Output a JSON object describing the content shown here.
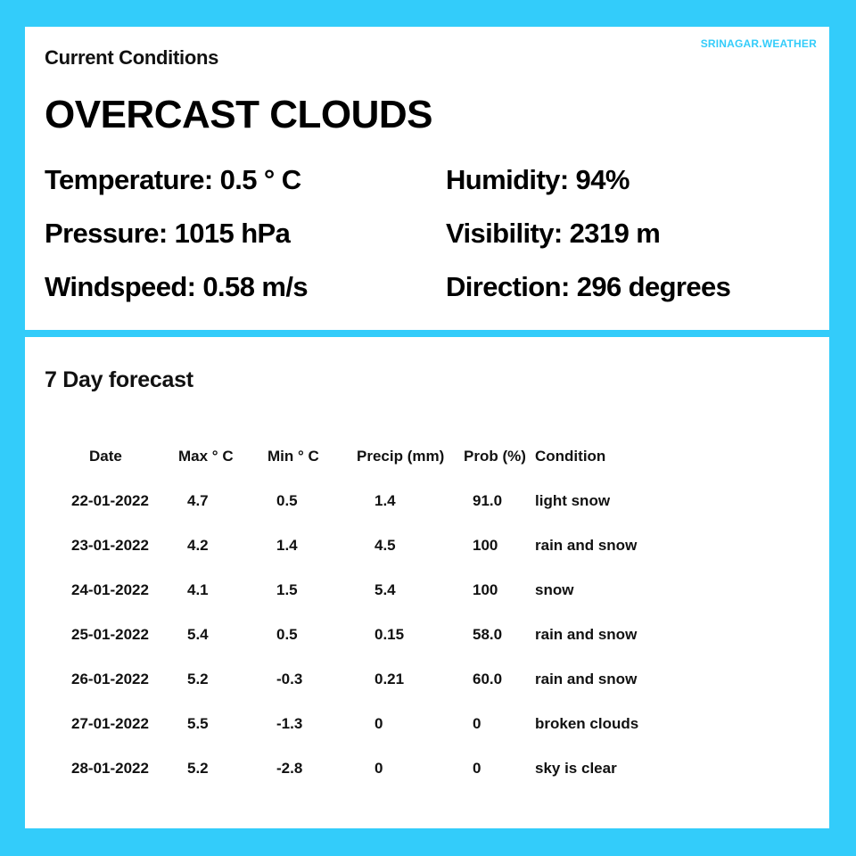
{
  "brand": "SRINAGAR.WEATHER",
  "current": {
    "section_title": "Current Conditions",
    "headline": "OVERCAST CLOUDS",
    "temperature": "Temperature: 0.5 ° C",
    "humidity": "Humidity: 94%",
    "pressure": "Pressure: 1015 hPa",
    "visibility": "Visibility: 2319 m",
    "windspeed": "Windspeed: 0.58 m/s",
    "direction": "Direction: 296 degrees"
  },
  "forecast": {
    "section_title": "7 Day forecast",
    "headers": {
      "date": "Date",
      "max": "Max ° C",
      "min": "Min ° C",
      "precip": "Precip (mm)",
      "prob": "Prob (%)",
      "condition": "Condition"
    },
    "rows": [
      {
        "date": "22-01-2022",
        "max": "4.7",
        "min": "0.5",
        "precip": "1.4",
        "prob": "91.0",
        "condition": "light snow"
      },
      {
        "date": "23-01-2022",
        "max": "4.2",
        "min": "1.4",
        "precip": "4.5",
        "prob": "100",
        "condition": "rain and snow"
      },
      {
        "date": "24-01-2022",
        "max": "4.1",
        "min": "1.5",
        "precip": "5.4",
        "prob": "100",
        "condition": "snow"
      },
      {
        "date": "25-01-2022",
        "max": "5.4",
        "min": "0.5",
        "precip": "0.15",
        "prob": "58.0",
        "condition": "rain and snow"
      },
      {
        "date": "26-01-2022",
        "max": "5.2",
        "min": "-0.3",
        "precip": "0.21",
        "prob": "60.0",
        "condition": "rain and snow"
      },
      {
        "date": "27-01-2022",
        "max": "5.5",
        "min": "-1.3",
        "precip": "0",
        "prob": "0",
        "condition": "broken clouds"
      },
      {
        "date": "28-01-2022",
        "max": "5.2",
        "min": "-2.8",
        "precip": "0",
        "prob": "0",
        "condition": "sky is clear"
      }
    ]
  },
  "colors": {
    "background": "#33ccfa",
    "card": "#ffffff",
    "brand": "#33ccfa",
    "text": "#111111"
  }
}
